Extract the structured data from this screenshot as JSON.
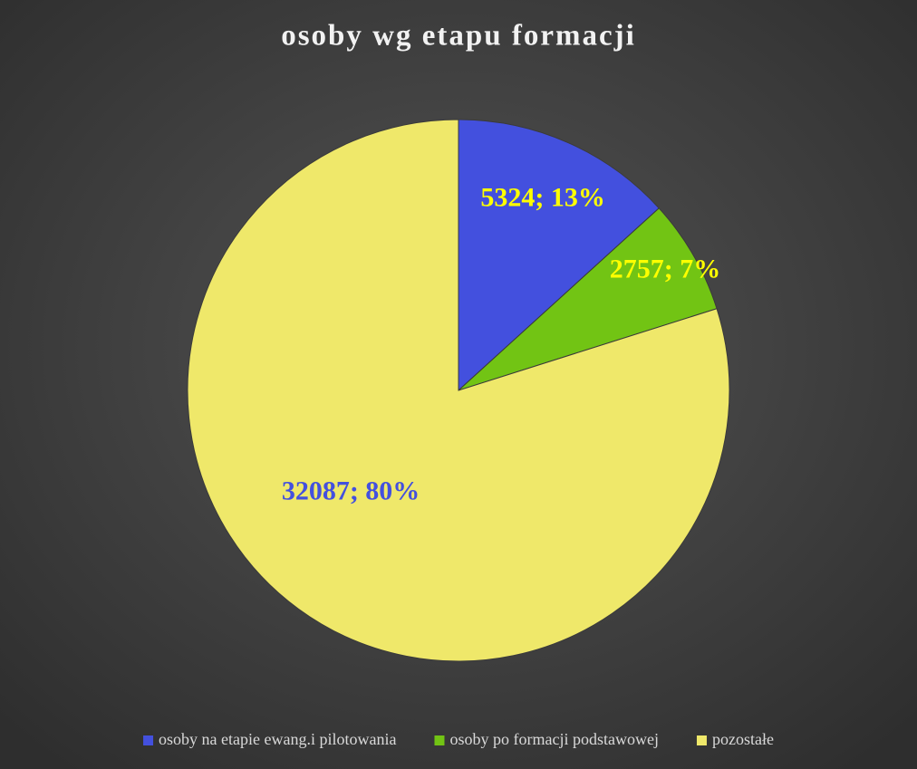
{
  "chart_data": {
    "type": "pie",
    "title": "osoby wg etapu formacji",
    "categories": [
      "osoby na etapie ewang.i pilotowania",
      "osoby po formacji podstawowej",
      "pozostałe"
    ],
    "values": [
      5324,
      2757,
      32087
    ],
    "value_labels": [
      "5324; 13%",
      "2757; 7%",
      "32087; 80%"
    ],
    "colors": [
      "#4350de",
      "#72c414",
      "#efe86a"
    ],
    "label_colors": [
      "#ffff00",
      "#ffff00",
      "#4350de"
    ],
    "legend": "bottom"
  }
}
